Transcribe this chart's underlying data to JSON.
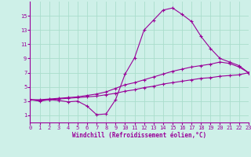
{
  "xlabel": "Windchill (Refroidissement éolien,°C)",
  "background_color": "#cef0e8",
  "grid_color": "#aaddcc",
  "line_color": "#990099",
  "axis_color": "#990099",
  "x_values": [
    0,
    1,
    2,
    3,
    4,
    5,
    6,
    7,
    8,
    9,
    10,
    11,
    12,
    13,
    14,
    15,
    16,
    17,
    18,
    19,
    20,
    21,
    22,
    23
  ],
  "series1": [
    3.2,
    3.0,
    3.2,
    3.1,
    2.9,
    3.0,
    2.3,
    1.1,
    1.2,
    3.2,
    6.8,
    9.1,
    13.0,
    14.4,
    15.8,
    16.1,
    15.2,
    14.2,
    12.1,
    10.4,
    9.0,
    8.5,
    8.0,
    7.0
  ],
  "series2": [
    3.2,
    3.2,
    3.3,
    3.4,
    3.5,
    3.6,
    3.8,
    4.0,
    4.3,
    4.8,
    5.3,
    5.6,
    6.0,
    6.4,
    6.8,
    7.2,
    7.5,
    7.8,
    8.0,
    8.2,
    8.5,
    8.3,
    7.8,
    7.0
  ],
  "series3": [
    3.2,
    3.1,
    3.2,
    3.3,
    3.4,
    3.5,
    3.6,
    3.7,
    3.9,
    4.1,
    4.4,
    4.6,
    4.9,
    5.1,
    5.4,
    5.6,
    5.8,
    6.0,
    6.2,
    6.3,
    6.5,
    6.6,
    6.7,
    7.0
  ],
  "ylim": [
    0,
    17
  ],
  "xlim": [
    0,
    23
  ],
  "yticks": [
    1,
    3,
    5,
    7,
    9,
    11,
    13,
    15
  ],
  "xticks": [
    0,
    1,
    2,
    3,
    4,
    5,
    6,
    7,
    8,
    9,
    10,
    11,
    12,
    13,
    14,
    15,
    16,
    17,
    18,
    19,
    20,
    21,
    22,
    23
  ]
}
